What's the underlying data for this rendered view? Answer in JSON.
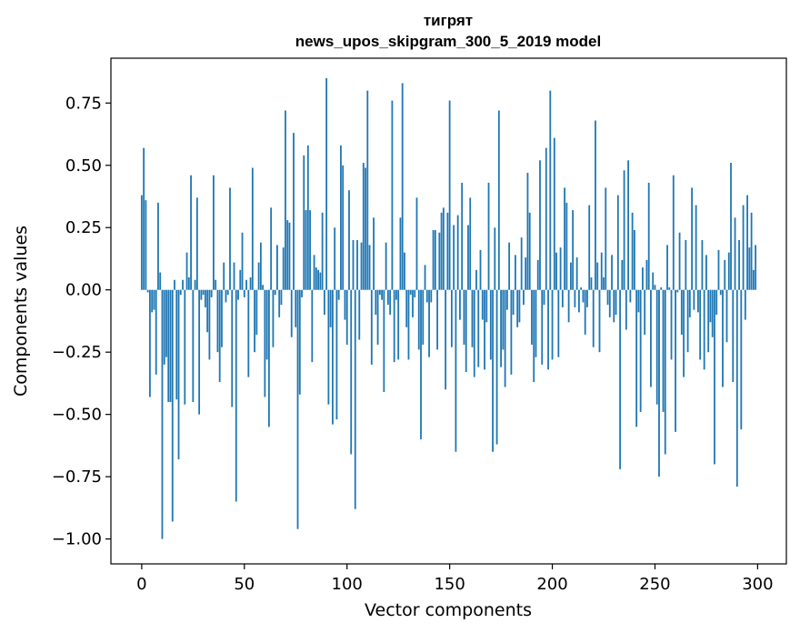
{
  "chart_data": {
    "type": "bar",
    "title": "тигрят",
    "subtitle": "news_upos_skipgram_300_5_2019 model",
    "xlabel": "Vector components",
    "ylabel": "Components values",
    "xlim": [
      -15,
      314
    ],
    "ylim": [
      -1.1,
      0.93
    ],
    "xticks": [
      0,
      50,
      100,
      150,
      200,
      250,
      300
    ],
    "yticks": [
      -1.0,
      -0.75,
      -0.5,
      -0.25,
      0.0,
      0.25,
      0.5,
      0.75
    ],
    "ytick_labels": [
      "−1.00",
      "−0.75",
      "−0.50",
      "−0.25",
      "0.00",
      "0.25",
      "0.50",
      "0.75"
    ],
    "bar_color": "#1f77b4",
    "grid": false,
    "values": [
      0.38,
      0.57,
      0.36,
      -0.01,
      -0.43,
      -0.09,
      -0.08,
      -0.34,
      0.35,
      0.07,
      -1.0,
      -0.3,
      -0.27,
      -0.45,
      -0.45,
      -0.93,
      0.04,
      -0.44,
      -0.68,
      -0.02,
      0.04,
      -0.46,
      0.15,
      0.05,
      0.46,
      -0.45,
      0.04,
      0.37,
      -0.5,
      -0.04,
      -0.02,
      -0.07,
      -0.17,
      -0.28,
      -0.03,
      0.46,
      0.04,
      -0.25,
      -0.37,
      -0.23,
      0.11,
      -0.05,
      -0.02,
      0.41,
      -0.47,
      0.11,
      -0.85,
      -0.04,
      0.08,
      0.23,
      -0.03,
      0.04,
      -0.35,
      0.05,
      0.49,
      -0.25,
      -0.18,
      0.11,
      0.19,
      0.02,
      -0.43,
      -0.28,
      -0.55,
      0.33,
      -0.23,
      -0.02,
      0.18,
      -0.11,
      -0.06,
      0.17,
      0.72,
      0.28,
      0.27,
      -0.19,
      0.63,
      -0.15,
      -0.96,
      -0.42,
      -0.03,
      0.54,
      0.32,
      0.58,
      0.32,
      -0.29,
      0.14,
      0.09,
      0.08,
      0.07,
      0.31,
      -0.1,
      0.85,
      -0.46,
      -0.15,
      -0.54,
      0.25,
      -0.52,
      -0.04,
      0.58,
      0.5,
      -0.12,
      -0.22,
      0.4,
      -0.66,
      0.2,
      -0.88,
      0.2,
      -0.2,
      0.19,
      0.51,
      0.49,
      0.8,
      0.18,
      -0.3,
      0.29,
      -0.1,
      -0.22,
      -0.02,
      -0.04,
      -0.41,
      0.19,
      -0.06,
      -0.1,
      0.76,
      -0.29,
      -0.04,
      -0.28,
      0.29,
      0.83,
      0.15,
      -0.15,
      -0.28,
      -0.02,
      -0.11,
      -0.03,
      0.37,
      -0.24,
      -0.6,
      -0.22,
      0.1,
      -0.05,
      -0.27,
      -0.05,
      0.24,
      0.24,
      -0.24,
      0.23,
      0.31,
      0.33,
      -0.4,
      0.31,
      0.76,
      -0.23,
      0.26,
      -0.65,
      0.3,
      -0.12,
      0.43,
      -0.22,
      -0.33,
      0.26,
      0.37,
      -0.23,
      -0.35,
      0.08,
      -0.31,
      0.16,
      -0.12,
      -0.32,
      -0.13,
      0.43,
      -0.28,
      -0.65,
      0.25,
      -0.62,
      0.72,
      -0.31,
      -0.24,
      -0.39,
      -0.08,
      0.19,
      -0.34,
      -0.1,
      0.14,
      -0.15,
      -0.13,
      0.21,
      -0.06,
      0.13,
      0.47,
      0.31,
      -0.22,
      -0.37,
      -0.27,
      0.12,
      0.52,
      -0.3,
      -0.06,
      0.57,
      -0.32,
      0.8,
      -0.28,
      0.61,
      0.15,
      -0.27,
      0.17,
      -0.07,
      0.41,
      0.35,
      -0.13,
      0.11,
      0.32,
      -0.07,
      0.13,
      -0.09,
      0.01,
      -0.05,
      -0.18,
      -0.07,
      0.34,
      0.05,
      -0.23,
      0.68,
      0.11,
      -0.25,
      0.15,
      0.05,
      0.41,
      -0.06,
      -0.11,
      0.14,
      -0.13,
      -0.1,
      0.38,
      -0.72,
      0.12,
      0.48,
      -0.16,
      0.52,
      -0.05,
      0.31,
      0.24,
      -0.55,
      -0.09,
      -0.49,
      0.09,
      -0.18,
      0.12,
      0.43,
      -0.39,
      0.07,
      0.02,
      -0.46,
      -0.75,
      0.01,
      -0.49,
      -0.66,
      0.18,
      0.01,
      -0.28,
      0.46,
      -0.57,
      -0.01,
      0.23,
      -0.18,
      -0.35,
      0.2,
      -0.25,
      -0.11,
      0.41,
      -0.08,
      0.34,
      -0.09,
      -0.28,
      0.2,
      -0.32,
      0.14,
      -0.25,
      -0.13,
      -0.19,
      -0.7,
      -0.1,
      0.16,
      -0.02,
      -0.39,
      0.12,
      -0.21,
      0.15,
      0.51,
      -0.37,
      0.29,
      -0.79,
      0.2,
      -0.56,
      0.34,
      -0.12,
      0.38,
      0.17,
      0.31,
      0.08,
      0.18
    ]
  }
}
